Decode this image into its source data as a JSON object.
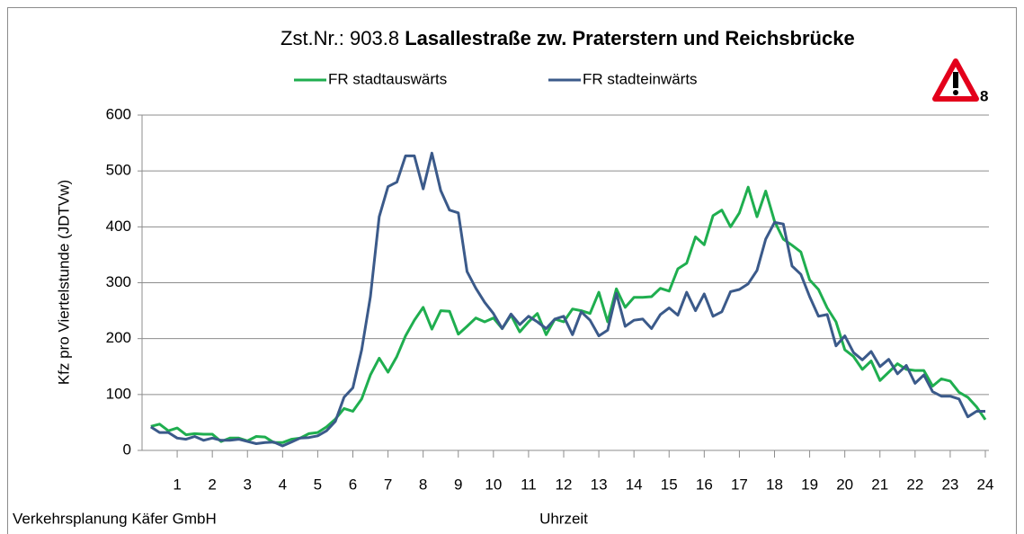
{
  "chart_data": {
    "type": "line",
    "title": {
      "number": "Zst.Nr.: 903.8",
      "location": "Lasallestraße zw. Praterstern und Reichsbrücke"
    },
    "warning_count": 8,
    "source": "Verkehrsplanung Käfer GmbH",
    "xlabel": "Uhrzeit",
    "ylabel": "Kfz pro Viertelstunde (JDTVw)",
    "xlim": [
      0,
      24
    ],
    "xticks": [
      1,
      2,
      3,
      4,
      5,
      6,
      7,
      8,
      9,
      10,
      11,
      12,
      13,
      14,
      15,
      16,
      17,
      18,
      19,
      20,
      21,
      22,
      23,
      24
    ],
    "ylim": [
      0,
      600
    ],
    "yticks": [
      0,
      100,
      200,
      300,
      400,
      500,
      600
    ],
    "grid": true,
    "legend": "top",
    "x": [
      0.25,
      0.5,
      0.75,
      1,
      1.25,
      1.5,
      1.75,
      2,
      2.25,
      2.5,
      2.75,
      3,
      3.25,
      3.5,
      3.75,
      4,
      4.25,
      4.5,
      4.75,
      5,
      5.25,
      5.5,
      5.75,
      6,
      6.25,
      6.5,
      6.75,
      7,
      7.25,
      7.5,
      7.75,
      8,
      8.25,
      8.5,
      8.75,
      9,
      9.25,
      9.5,
      9.75,
      10,
      10.25,
      10.5,
      10.75,
      11,
      11.25,
      11.5,
      11.75,
      12,
      12.25,
      12.5,
      12.75,
      13,
      13.25,
      13.5,
      13.75,
      14,
      14.25,
      14.5,
      14.75,
      15,
      15.25,
      15.5,
      15.75,
      16,
      16.25,
      16.5,
      16.75,
      17,
      17.25,
      17.5,
      17.75,
      18,
      18.25,
      18.5,
      18.75,
      19,
      19.25,
      19.5,
      19.75,
      20,
      20.25,
      20.5,
      20.75,
      21,
      21.25,
      21.5,
      21.75,
      22,
      22.25,
      22.5,
      22.75,
      23,
      23.25,
      23.5,
      23.75,
      24
    ],
    "series": [
      {
        "name": "FR stadtauswärts",
        "color": "#1fae4f",
        "values": [
          43,
          47,
          35,
          40,
          28,
          30,
          29,
          29,
          16,
          22,
          22,
          17,
          25,
          24,
          14,
          14,
          20,
          22,
          30,
          32,
          42,
          56,
          75,
          70,
          92,
          135,
          165,
          140,
          168,
          205,
          233,
          256,
          217,
          250,
          249,
          208,
          222,
          237,
          230,
          237,
          218,
          242,
          212,
          230,
          245,
          207,
          235,
          230,
          253,
          250,
          245,
          283,
          230,
          289,
          256,
          274,
          274,
          275,
          290,
          285,
          325,
          335,
          382,
          368,
          420,
          430,
          400,
          425,
          471,
          418,
          464,
          410,
          378,
          367,
          355,
          305,
          288,
          255,
          230,
          180,
          168,
          145,
          160,
          125,
          140,
          155,
          145,
          143,
          143,
          115,
          128,
          124,
          104,
          95,
          78,
          55
        ]
      },
      {
        "name": "FR stadteinwärts",
        "color": "#3b5a8a",
        "values": [
          42,
          32,
          32,
          22,
          20,
          25,
          18,
          22,
          18,
          18,
          20,
          16,
          12,
          14,
          15,
          8,
          15,
          22,
          23,
          26,
          35,
          52,
          95,
          112,
          180,
          275,
          418,
          472,
          480,
          527,
          527,
          468,
          532,
          465,
          430,
          425,
          320,
          290,
          265,
          245,
          218,
          244,
          225,
          240,
          230,
          218,
          235,
          240,
          207,
          248,
          233,
          205,
          215,
          281,
          222,
          233,
          235,
          218,
          243,
          255,
          242,
          283,
          250,
          280,
          240,
          248,
          284,
          288,
          298,
          322,
          378,
          408,
          405,
          330,
          315,
          275,
          240,
          243,
          187,
          205,
          175,
          162,
          177,
          150,
          163,
          137,
          152,
          120,
          135,
          105,
          97,
          97,
          92,
          60,
          70,
          70
        ]
      }
    ]
  }
}
